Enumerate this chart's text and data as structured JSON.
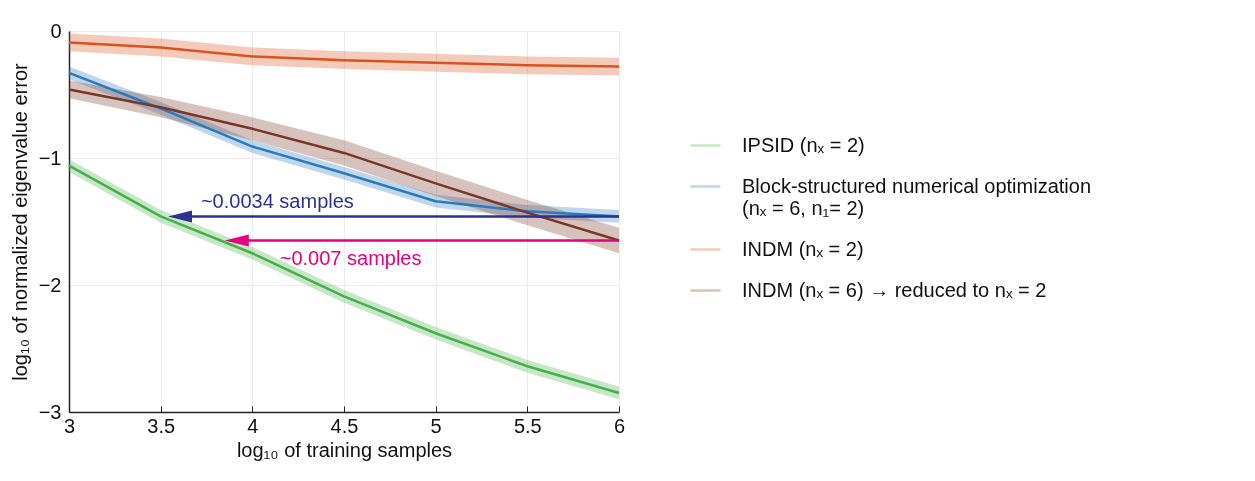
{
  "chart_data": {
    "type": "line",
    "xlabel": "log₁₀ of training samples",
    "ylabel": "log₁₀ of normalized eigenvalue error",
    "x": [
      3,
      3.5,
      4,
      4.5,
      5,
      5.5,
      6
    ],
    "series": [
      {
        "name": "IPSID (nₓ = 2)",
        "color": "#44b149",
        "values": [
          -1.06,
          -1.46,
          -1.75,
          -2.09,
          -2.38,
          -2.64,
          -2.85
        ],
        "lower": [
          -1.11,
          -1.51,
          -1.8,
          -2.14,
          -2.43,
          -2.69,
          -2.9
        ],
        "upper": [
          -1.01,
          -1.41,
          -1.7,
          -2.04,
          -2.33,
          -2.59,
          -2.8
        ]
      },
      {
        "name": "Block-structured numerical optimization (nₓ = 6, n₁= 2)",
        "color": "#2a7bbd",
        "values": [
          -0.33,
          -0.61,
          -0.91,
          -1.12,
          -1.34,
          -1.42,
          -1.46
        ],
        "lower": [
          -0.38,
          -0.66,
          -0.96,
          -1.17,
          -1.39,
          -1.47,
          -1.51
        ],
        "upper": [
          -0.28,
          -0.56,
          -0.86,
          -1.07,
          -1.29,
          -1.37,
          -1.41
        ]
      },
      {
        "name": "INDM (nₓ = 2)",
        "color": "#d9531e",
        "values": [
          -0.09,
          -0.13,
          -0.2,
          -0.23,
          -0.25,
          -0.27,
          -0.28
        ],
        "lower": [
          -0.16,
          -0.2,
          -0.27,
          -0.3,
          -0.32,
          -0.34,
          -0.35
        ],
        "upper": [
          -0.02,
          -0.06,
          -0.13,
          -0.16,
          -0.18,
          -0.2,
          -0.21
        ]
      },
      {
        "name": "INDM (nₓ = 6) → reduced to nₓ = 2",
        "color": "#7a3728",
        "values": [
          -0.46,
          -0.6,
          -0.77,
          -0.96,
          -1.2,
          -1.43,
          -1.65
        ],
        "lower": [
          -0.53,
          -0.68,
          -0.86,
          -1.06,
          -1.3,
          -1.53,
          -1.75
        ],
        "upper": [
          -0.39,
          -0.52,
          -0.68,
          -0.86,
          -1.1,
          -1.33,
          -1.55
        ]
      }
    ],
    "annotations": [
      {
        "text": "~0.0034 samples",
        "x": 3.54,
        "y": -1.46
      },
      {
        "text": "~0.007 samples",
        "x": 3.85,
        "y": -1.65
      }
    ],
    "xlim": [
      3,
      6
    ],
    "xticks": [
      3,
      3.5,
      4,
      4.5,
      5,
      5.5,
      6
    ],
    "ylim": [
      -3,
      0
    ],
    "yticks": [
      0,
      -1,
      -2,
      -3
    ],
    "grid": true,
    "legend": "right",
    "line_style": "solid"
  }
}
